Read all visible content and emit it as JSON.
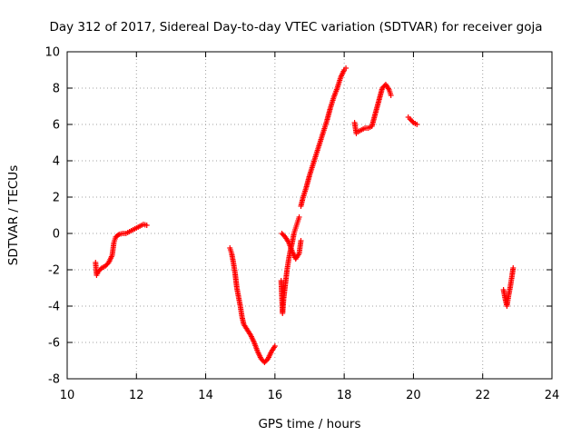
{
  "chart_data": {
    "type": "scatter",
    "title": "Day 312 of 2017, Sidereal Day-to-day VTEC variation (SDTVAR) for receiver goja",
    "xlabel": "GPS time / hours",
    "ylabel": "SDTVAR / TECUs",
    "xlim": [
      10,
      24
    ],
    "ylim": [
      -8,
      10
    ],
    "xticks": [
      10,
      12,
      14,
      16,
      18,
      20,
      22,
      24
    ],
    "yticks": [
      -8,
      -6,
      -4,
      -2,
      0,
      2,
      4,
      6,
      8,
      10
    ],
    "grid": true,
    "marker": "+",
    "color": "#ff0000",
    "series": [
      {
        "name": "goja",
        "segments": [
          [
            [
              10.82,
              -1.6
            ],
            [
              10.85,
              -2.3
            ],
            [
              10.9,
              -2.1
            ],
            [
              11.0,
              -1.9
            ],
            [
              11.1,
              -1.8
            ],
            [
              11.2,
              -1.6
            ],
            [
              11.3,
              -1.2
            ],
            [
              11.35,
              -0.5
            ],
            [
              11.4,
              -0.2
            ],
            [
              11.5,
              -0.05
            ],
            [
              11.6,
              0.0
            ],
            [
              11.7,
              0.0
            ],
            [
              11.8,
              0.1
            ],
            [
              11.9,
              0.2
            ],
            [
              12.0,
              0.3
            ],
            [
              12.1,
              0.4
            ],
            [
              12.2,
              0.5
            ],
            [
              12.3,
              0.45
            ]
          ],
          [
            [
              14.7,
              -0.8
            ],
            [
              14.75,
              -1.1
            ],
            [
              14.8,
              -1.6
            ],
            [
              14.85,
              -2.2
            ],
            [
              14.9,
              -3.0
            ],
            [
              14.95,
              -3.5
            ],
            [
              15.0,
              -4.0
            ],
            [
              15.05,
              -4.6
            ],
            [
              15.1,
              -5.0
            ],
            [
              15.2,
              -5.3
            ],
            [
              15.3,
              -5.6
            ],
            [
              15.4,
              -6.0
            ],
            [
              15.5,
              -6.5
            ],
            [
              15.6,
              -6.9
            ],
            [
              15.7,
              -7.1
            ],
            [
              15.8,
              -6.9
            ],
            [
              15.9,
              -6.5
            ],
            [
              16.0,
              -6.2
            ]
          ],
          [
            [
              16.18,
              -2.6
            ],
            [
              16.2,
              -3.5
            ],
            [
              16.22,
              -4.4
            ],
            [
              16.25,
              -3.6
            ],
            [
              16.3,
              -2.8
            ],
            [
              16.35,
              -2.0
            ],
            [
              16.4,
              -1.4
            ],
            [
              16.45,
              -0.9
            ],
            [
              16.5,
              -0.5
            ],
            [
              16.55,
              0.0
            ],
            [
              16.6,
              0.3
            ],
            [
              16.65,
              0.6
            ],
            [
              16.7,
              0.9
            ]
          ],
          [
            [
              16.2,
              0.0
            ],
            [
              16.3,
              -0.2
            ],
            [
              16.4,
              -0.5
            ],
            [
              16.5,
              -1.0
            ],
            [
              16.6,
              -1.4
            ],
            [
              16.7,
              -1.1
            ],
            [
              16.75,
              -0.4
            ]
          ],
          [
            [
              16.75,
              1.5
            ],
            [
              16.8,
              1.9
            ],
            [
              16.9,
              2.5
            ],
            [
              17.0,
              3.2
            ],
            [
              17.1,
              3.8
            ],
            [
              17.2,
              4.4
            ],
            [
              17.3,
              5.0
            ],
            [
              17.4,
              5.6
            ],
            [
              17.5,
              6.2
            ],
            [
              17.6,
              6.9
            ],
            [
              17.7,
              7.5
            ],
            [
              17.8,
              8.0
            ],
            [
              17.9,
              8.6
            ],
            [
              18.0,
              9.0
            ],
            [
              18.05,
              9.1
            ]
          ],
          [
            [
              18.3,
              6.1
            ],
            [
              18.35,
              5.5
            ],
            [
              18.4,
              5.6
            ],
            [
              18.5,
              5.7
            ],
            [
              18.6,
              5.8
            ],
            [
              18.7,
              5.8
            ],
            [
              18.8,
              5.9
            ],
            [
              18.9,
              6.6
            ],
            [
              19.0,
              7.3
            ],
            [
              19.1,
              8.0
            ],
            [
              19.2,
              8.2
            ],
            [
              19.3,
              7.9
            ],
            [
              19.35,
              7.6
            ]
          ],
          [
            [
              19.85,
              6.4
            ],
            [
              19.9,
              6.3
            ],
            [
              20.0,
              6.1
            ],
            [
              20.1,
              6.0
            ]
          ],
          [
            [
              22.6,
              -3.1
            ],
            [
              22.65,
              -3.6
            ],
            [
              22.7,
              -4.0
            ],
            [
              22.75,
              -3.4
            ],
            [
              22.8,
              -2.9
            ],
            [
              22.85,
              -2.3
            ],
            [
              22.88,
              -1.9
            ]
          ]
        ]
      }
    ]
  }
}
